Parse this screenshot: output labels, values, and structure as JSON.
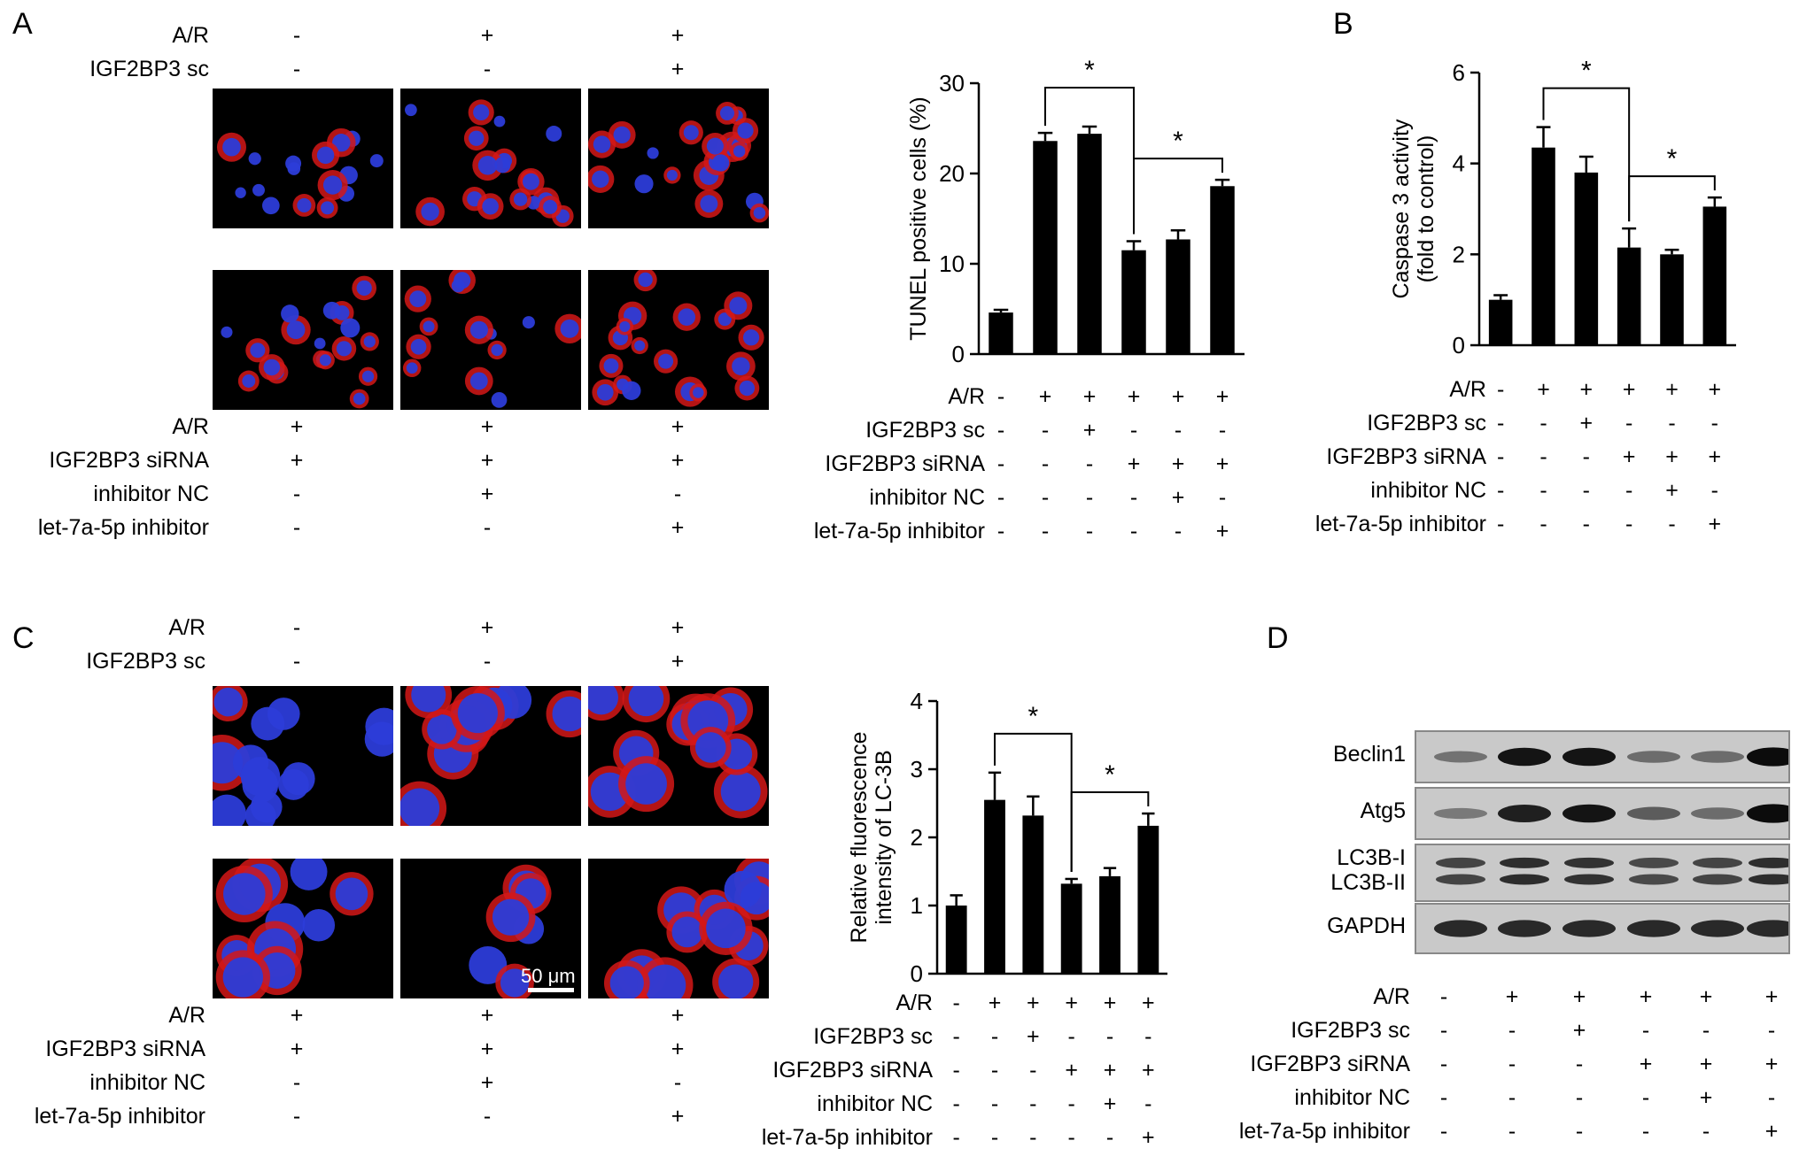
{
  "panels": {
    "A": {
      "letter": "A",
      "top_rows": [
        {
          "label": "A/R",
          "signs": [
            "-",
            "+",
            "+"
          ]
        },
        {
          "label": "IGF2BP3 sc",
          "signs": [
            "-",
            "-",
            "+"
          ]
        }
      ],
      "bottom_rows": [
        {
          "label": "A/R",
          "signs": [
            "+",
            "+",
            "+"
          ]
        },
        {
          "label": "IGF2BP3 siRNA",
          "signs": [
            "+",
            "+",
            "+"
          ]
        },
        {
          "label": "inhibitor NC",
          "signs": [
            "-",
            "+",
            "-"
          ]
        },
        {
          "label": "let-7a-5p inhibitor",
          "signs": [
            "-",
            "-",
            "+"
          ]
        }
      ]
    },
    "B": {
      "letter": "B"
    },
    "C": {
      "letter": "C",
      "scale_bar": "50 μm",
      "top_rows": [
        {
          "label": "A/R",
          "signs": [
            "-",
            "+",
            "+"
          ]
        },
        {
          "label": "IGF2BP3 sc",
          "signs": [
            "-",
            "-",
            "+"
          ]
        }
      ],
      "bottom_rows": [
        {
          "label": "A/R",
          "signs": [
            "+",
            "+",
            "+"
          ]
        },
        {
          "label": "IGF2BP3 siRNA",
          "signs": [
            "+",
            "+",
            "+"
          ]
        },
        {
          "label": "inhibitor NC",
          "signs": [
            "-",
            "+",
            "-"
          ]
        },
        {
          "label": "let-7a-5p inhibitor",
          "signs": [
            "-",
            "-",
            "+"
          ]
        }
      ]
    },
    "D": {
      "letter": "D",
      "bands": [
        {
          "label": "Beclin1",
          "intensity": [
            0.35,
            0.9,
            0.9,
            0.4,
            0.4,
            0.95
          ]
        },
        {
          "label": "Atg5",
          "intensity": [
            0.3,
            0.85,
            0.9,
            0.5,
            0.4,
            0.95
          ]
        },
        {
          "label": "LC3B-I",
          "label2": "LC3B-II",
          "intensity": [
            0.5,
            0.8,
            0.75,
            0.45,
            0.5,
            0.8
          ]
        },
        {
          "label": "GAPDH",
          "intensity": [
            0.8,
            0.8,
            0.8,
            0.8,
            0.8,
            0.8
          ]
        }
      ],
      "rows": [
        {
          "label": "A/R",
          "signs": [
            "-",
            "+",
            "+",
            "+",
            "+",
            "+"
          ]
        },
        {
          "label": "IGF2BP3 sc",
          "signs": [
            "-",
            "-",
            "+",
            "-",
            "-",
            "-"
          ]
        },
        {
          "label": "IGF2BP3 siRNA",
          "signs": [
            "-",
            "-",
            "-",
            "+",
            "+",
            "+"
          ]
        },
        {
          "label": "inhibitor NC",
          "signs": [
            "-",
            "-",
            "-",
            "-",
            "+",
            "-"
          ]
        },
        {
          "label": "let-7a-5p inhibitor",
          "signs": [
            "-",
            "-",
            "-",
            "-",
            "-",
            "+"
          ]
        }
      ]
    }
  },
  "chart_data": [
    {
      "id": "A",
      "type": "bar",
      "title": "",
      "xlabel": "",
      "ylabel": "TUNEL positive cells (%)",
      "ylim": [
        0,
        30
      ],
      "yticks": [
        0,
        10,
        20,
        30
      ],
      "values": [
        4.6,
        23.6,
        24.4,
        11.5,
        12.7,
        18.6
      ],
      "errors": [
        0.3,
        0.9,
        0.8,
        1.0,
        1.0,
        0.7
      ],
      "significance": [
        {
          "from": 1,
          "to": 3,
          "label": "*"
        },
        {
          "from": 3,
          "to": 5,
          "label": "*"
        }
      ],
      "rows": [
        {
          "label": "A/R",
          "signs": [
            "-",
            "+",
            "+",
            "+",
            "+",
            "+"
          ]
        },
        {
          "label": "IGF2BP3 sc",
          "signs": [
            "-",
            "-",
            "+",
            "-",
            "-",
            "-"
          ]
        },
        {
          "label": "IGF2BP3 siRNA",
          "signs": [
            "-",
            "-",
            "-",
            "+",
            "+",
            "+"
          ]
        },
        {
          "label": "inhibitor NC",
          "signs": [
            "-",
            "-",
            "-",
            "-",
            "+",
            "-"
          ]
        },
        {
          "label": "let-7a-5p inhibitor",
          "signs": [
            "-",
            "-",
            "-",
            "-",
            "-",
            "+"
          ]
        }
      ]
    },
    {
      "id": "B",
      "type": "bar",
      "title": "",
      "xlabel": "",
      "ylabel": "Caspase 3 activity",
      "ylabel2": "(fold to control)",
      "ylim": [
        0,
        6
      ],
      "yticks": [
        0,
        2,
        4,
        6
      ],
      "values": [
        1.0,
        4.35,
        3.8,
        2.15,
        2.0,
        3.05
      ],
      "errors": [
        0.1,
        0.45,
        0.35,
        0.42,
        0.1,
        0.2
      ],
      "significance": [
        {
          "from": 1,
          "to": 3,
          "label": "*"
        },
        {
          "from": 3,
          "to": 5,
          "label": "*"
        }
      ],
      "rows": [
        {
          "label": "A/R",
          "signs": [
            "-",
            "+",
            "+",
            "+",
            "+",
            "+"
          ]
        },
        {
          "label": "IGF2BP3 sc",
          "signs": [
            "-",
            "-",
            "+",
            "-",
            "-",
            "-"
          ]
        },
        {
          "label": "IGF2BP3 siRNA",
          "signs": [
            "-",
            "-",
            "-",
            "+",
            "+",
            "+"
          ]
        },
        {
          "label": "inhibitor NC",
          "signs": [
            "-",
            "-",
            "-",
            "-",
            "+",
            "-"
          ]
        },
        {
          "label": "let-7a-5p inhibitor",
          "signs": [
            "-",
            "-",
            "-",
            "-",
            "-",
            "+"
          ]
        }
      ]
    },
    {
      "id": "C",
      "type": "bar",
      "title": "",
      "xlabel": "",
      "ylabel": "Relative  fluorescence",
      "ylabel2": "intensity of LC-3B",
      "ylim": [
        0,
        4
      ],
      "yticks": [
        0,
        1,
        2,
        3,
        4
      ],
      "values": [
        1.0,
        2.55,
        2.32,
        1.32,
        1.43,
        2.17
      ],
      "errors": [
        0.15,
        0.4,
        0.28,
        0.07,
        0.12,
        0.18
      ],
      "significance": [
        {
          "from": 1,
          "to": 3,
          "label": "*"
        },
        {
          "from": 3,
          "to": 5,
          "label": "*"
        }
      ],
      "rows": [
        {
          "label": "A/R",
          "signs": [
            "-",
            "+",
            "+",
            "+",
            "+",
            "+"
          ]
        },
        {
          "label": "IGF2BP3 sc",
          "signs": [
            "-",
            "-",
            "+",
            "-",
            "-",
            "-"
          ]
        },
        {
          "label": "IGF2BP3 siRNA",
          "signs": [
            "-",
            "-",
            "-",
            "+",
            "+",
            "+"
          ]
        },
        {
          "label": "inhibitor NC",
          "signs": [
            "-",
            "-",
            "-",
            "-",
            "+",
            "-"
          ]
        },
        {
          "label": "let-7a-5p inhibitor",
          "signs": [
            "-",
            "-",
            "-",
            "-",
            "-",
            "+"
          ]
        }
      ]
    }
  ]
}
